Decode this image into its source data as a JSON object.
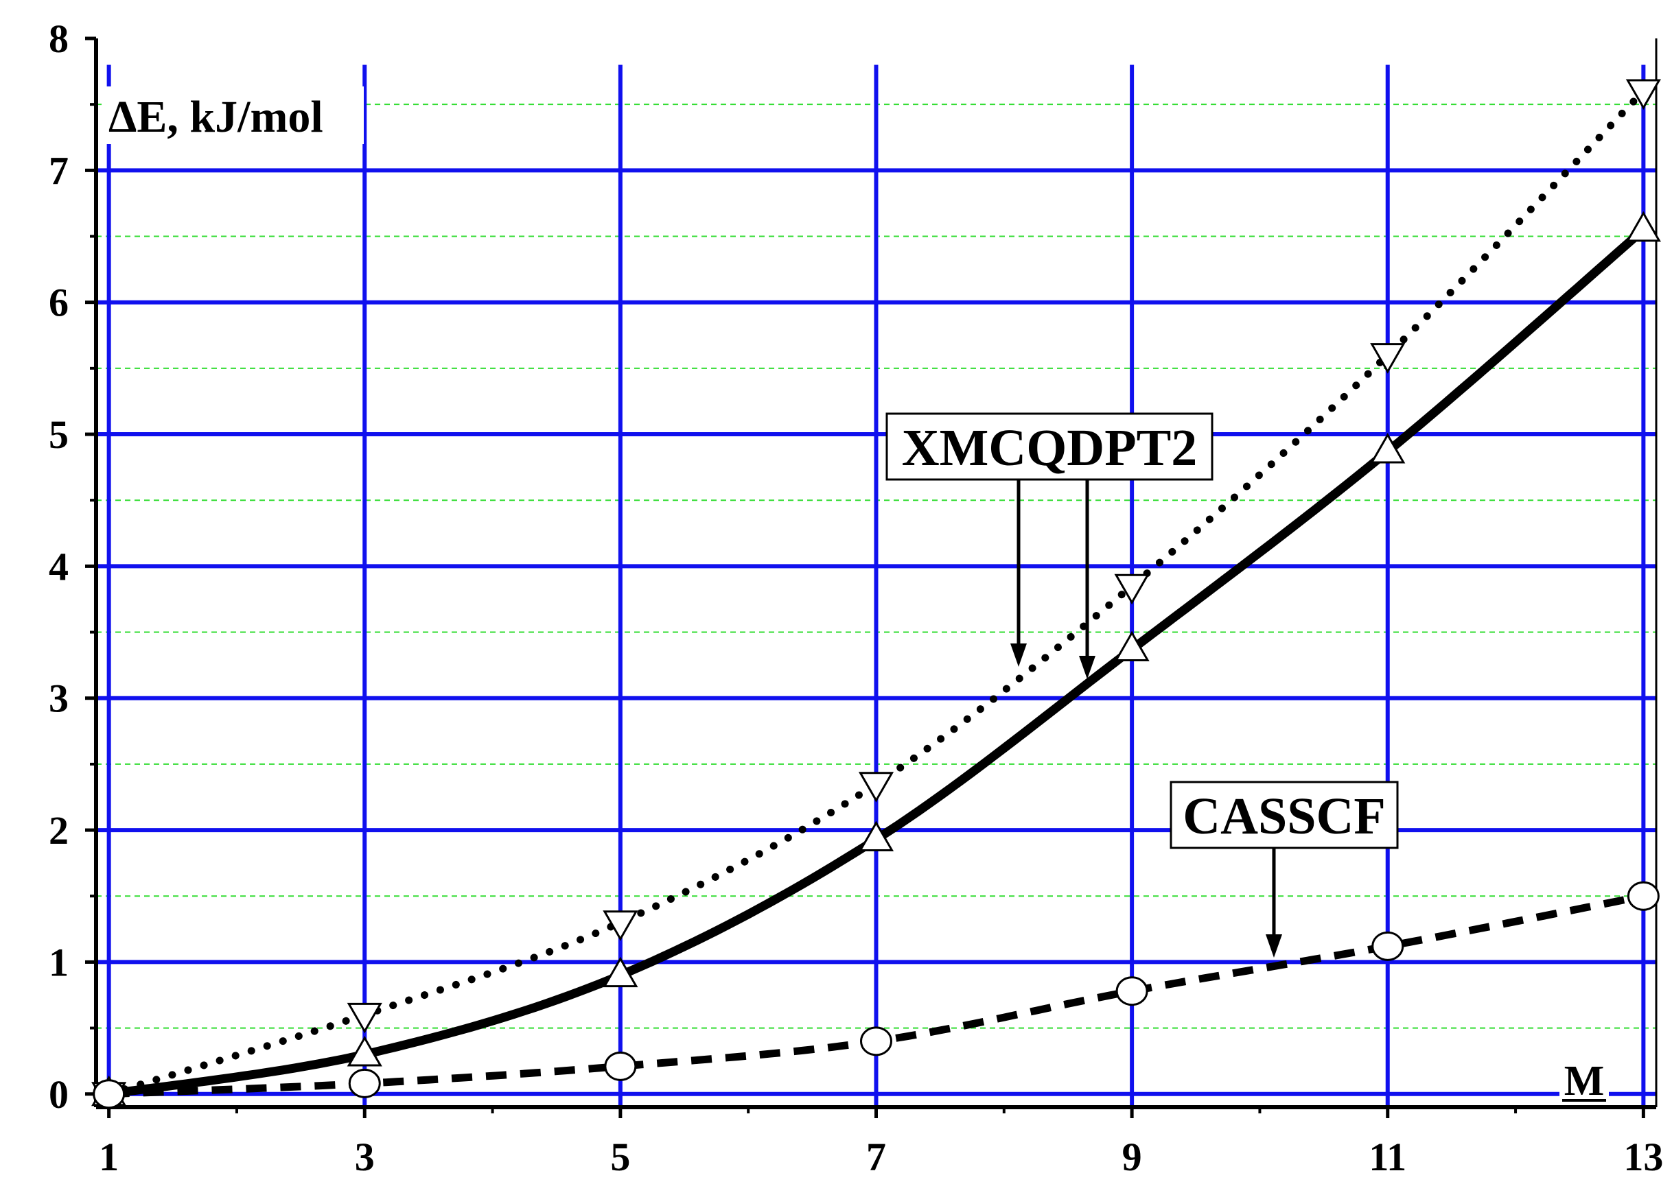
{
  "chart_data": {
    "type": "line",
    "ylabel": "ΔE, kJ/mol",
    "xlabel": "M",
    "xlim": [
      0.9,
      13.1
    ],
    "ylim": [
      -0.1,
      8
    ],
    "x_ticks": [
      1,
      3,
      5,
      7,
      9,
      11,
      13
    ],
    "y_ticks": [
      0,
      1,
      2,
      3,
      4,
      5,
      6,
      7,
      8
    ],
    "grid": true,
    "series": [
      {
        "style": "dotted",
        "marker": "triangle-down",
        "x": [
          1,
          3,
          5,
          7,
          9,
          11,
          13
        ],
        "y": [
          0.0,
          0.6,
          1.3,
          2.35,
          3.85,
          5.6,
          7.6
        ]
      },
      {
        "style": "solid",
        "marker": "triangle-up",
        "x": [
          1,
          3,
          5,
          7,
          9,
          11,
          13
        ],
        "y": [
          0.0,
          0.3,
          0.9,
          1.93,
          3.37,
          4.87,
          6.55
        ]
      },
      {
        "style": "dashed",
        "marker": "circle",
        "x": [
          1,
          3,
          5,
          7,
          9,
          11,
          13
        ],
        "y": [
          0.0,
          0.08,
          0.21,
          0.4,
          0.78,
          1.12,
          1.5
        ]
      }
    ],
    "annotations": [
      {
        "text": "XMCQDPT2"
      },
      {
        "text": "CASSCF"
      }
    ]
  },
  "colors": {
    "major_grid": "#1010ee",
    "minor_grid": "#33dd33",
    "line": "#000000",
    "marker_fill": "#ffffff"
  }
}
